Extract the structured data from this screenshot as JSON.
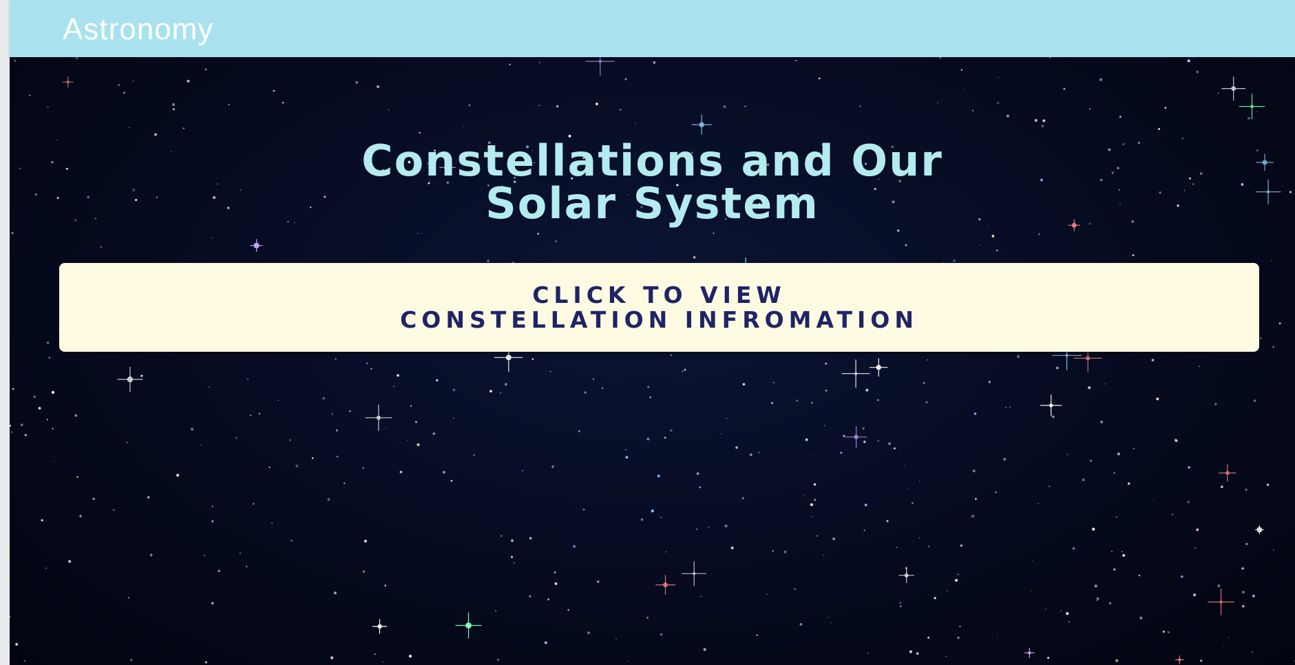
{
  "app_bar": {
    "title": "Astronomy",
    "background_color": "#a9e2ee"
  },
  "main": {
    "headline_line1": "Constellations and Our",
    "headline_line2": "Solar System",
    "headline_color": "#b3ebef",
    "background_color": "#050a1e"
  },
  "info_button": {
    "label_line1": "CLICK TO VIEW",
    "label_line2": "CONSTELLATION INFROMATION",
    "background_color": "#fffbe3",
    "text_color": "#1f2466"
  }
}
